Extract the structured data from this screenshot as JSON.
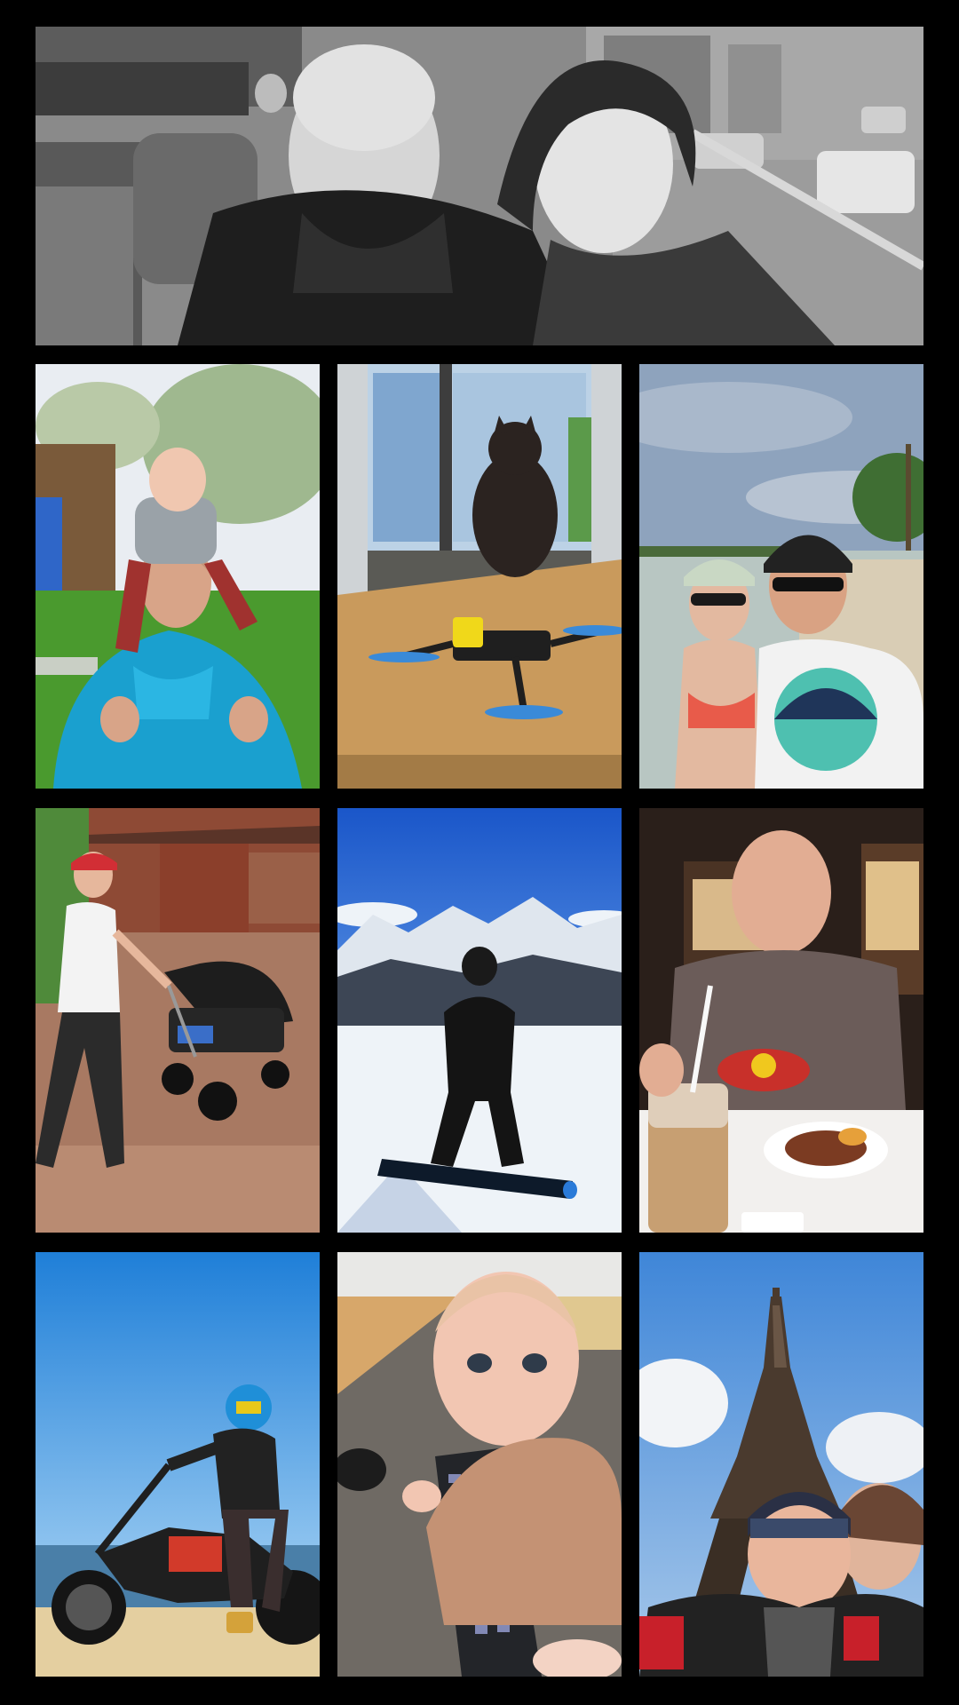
{
  "gallery": {
    "photos": [
      {
        "id": "hero",
        "subject": "couple-selfie-on-tour-bus",
        "tone": "black-and-white"
      },
      {
        "id": "shoulders",
        "subject": "man-with-baby-on-shoulders"
      },
      {
        "id": "cat",
        "subject": "cat-at-window-with-drone"
      },
      {
        "id": "beach",
        "subject": "couple-selfie-at-beach"
      },
      {
        "id": "stroller",
        "subject": "man-pushing-stroller"
      },
      {
        "id": "snow",
        "subject": "snowboarder-mountains"
      },
      {
        "id": "dinner",
        "subject": "man-eating-dinner"
      },
      {
        "id": "moto",
        "subject": "motorcyclist-at-shore"
      },
      {
        "id": "baby",
        "subject": "baby-with-keyboard"
      },
      {
        "id": "eiffel",
        "subject": "couple-at-eiffel-tower"
      }
    ]
  },
  "colors": {
    "background": "#000000",
    "sky_blue": "#1f7fd8",
    "snow": "#eef3f8",
    "grass": "#4a9a2e",
    "wood": "#c99a5c"
  }
}
